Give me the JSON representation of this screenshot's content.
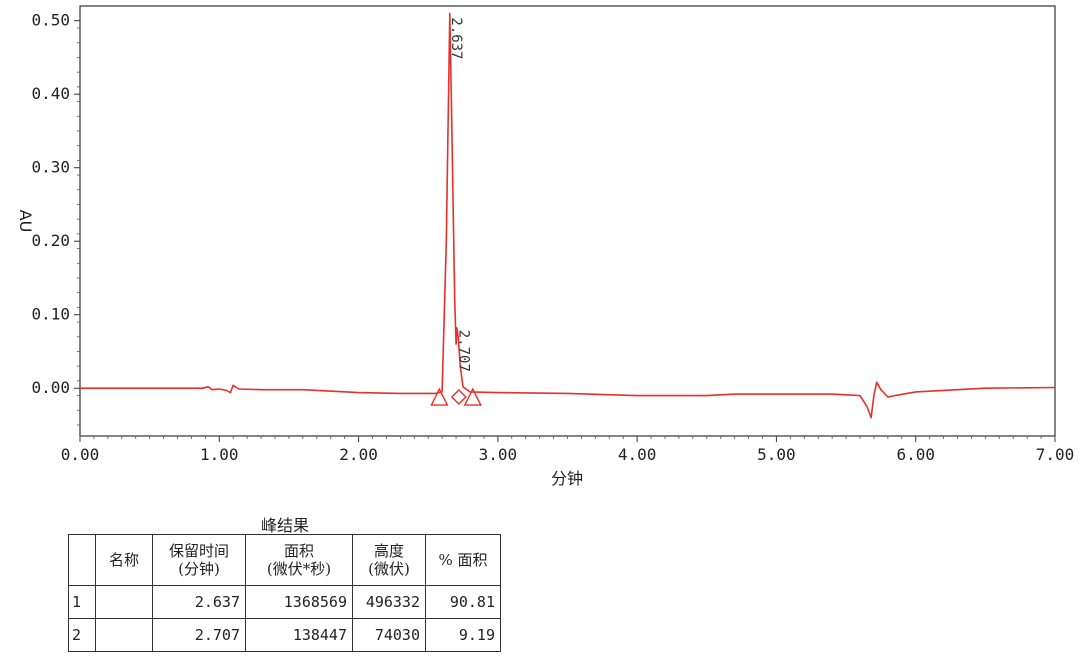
{
  "chart_data": {
    "type": "line",
    "xlabel": "分钟",
    "ylabel": "AU",
    "xlim": [
      0,
      7
    ],
    "ylim": [
      -0.065,
      0.52
    ],
    "x_ticks": [
      "0.00",
      "1.00",
      "2.00",
      "3.00",
      "4.00",
      "5.00",
      "6.00",
      "7.00"
    ],
    "y_ticks": [
      "0.00",
      "0.10",
      "0.20",
      "0.30",
      "0.40",
      "0.50"
    ],
    "grid": false,
    "line_color": "#e8302a",
    "series": [
      {
        "values": [
          [
            0,
            0.0
          ],
          [
            0.5,
            0.0
          ],
          [
            0.88,
            0.0
          ],
          [
            0.92,
            0.002
          ],
          [
            0.95,
            -0.002
          ],
          [
            1.0,
            -0.001
          ],
          [
            1.05,
            -0.003
          ],
          [
            1.08,
            -0.006
          ],
          [
            1.1,
            0.004
          ],
          [
            1.14,
            -0.001
          ],
          [
            1.3,
            -0.002
          ],
          [
            1.6,
            -0.002
          ],
          [
            2.0,
            -0.006
          ],
          [
            2.3,
            -0.007
          ],
          [
            2.55,
            -0.007
          ],
          [
            2.6,
            -0.005
          ],
          [
            2.63,
            0.2
          ],
          [
            2.655,
            0.51
          ],
          [
            2.67,
            0.35
          ],
          [
            2.69,
            0.12
          ],
          [
            2.7,
            0.06
          ],
          [
            2.705,
            0.082
          ],
          [
            2.715,
            0.07
          ],
          [
            2.73,
            0.03
          ],
          [
            2.75,
            0.002
          ],
          [
            2.8,
            -0.005
          ],
          [
            3.0,
            -0.006
          ],
          [
            3.5,
            -0.007
          ],
          [
            4.0,
            -0.01
          ],
          [
            4.5,
            -0.01
          ],
          [
            4.7,
            -0.008
          ],
          [
            5.0,
            -0.008
          ],
          [
            5.4,
            -0.008
          ],
          [
            5.6,
            -0.01
          ],
          [
            5.65,
            -0.025
          ],
          [
            5.68,
            -0.04
          ],
          [
            5.7,
            -0.01
          ],
          [
            5.72,
            0.008
          ],
          [
            5.75,
            -0.002
          ],
          [
            5.8,
            -0.012
          ],
          [
            5.85,
            -0.01
          ],
          [
            6.0,
            -0.005
          ],
          [
            6.5,
            0.0
          ],
          [
            7.0,
            0.001
          ]
        ]
      }
    ],
    "peaks": [
      {
        "label": "2.637",
        "x": 2.655,
        "y": 0.51
      },
      {
        "label": "2.707",
        "x": 2.71,
        "y": 0.085
      }
    ],
    "markers": [
      {
        "shape": "triangle",
        "x": 2.58,
        "y": -0.012
      },
      {
        "shape": "diamond",
        "x": 2.72,
        "y": -0.012
      },
      {
        "shape": "triangle",
        "x": 2.82,
        "y": -0.012
      }
    ]
  },
  "table": {
    "caption": "峰结果",
    "headers": [
      {
        "key": "idx",
        "lines": [
          ""
        ]
      },
      {
        "key": "name",
        "lines": [
          "名称"
        ]
      },
      {
        "key": "rt",
        "lines": [
          "保留时间",
          "(分钟)"
        ]
      },
      {
        "key": "area",
        "lines": [
          "面积",
          "(微伏*秒)"
        ]
      },
      {
        "key": "height",
        "lines": [
          "高度",
          "(微伏)"
        ]
      },
      {
        "key": "pct",
        "lines": [
          "% 面积"
        ]
      }
    ],
    "rows": [
      [
        "1",
        "",
        "2.637",
        "1368569",
        "496332",
        "90.81"
      ],
      [
        "2",
        "",
        "2.707",
        "138447",
        "74030",
        "9.19"
      ]
    ]
  }
}
